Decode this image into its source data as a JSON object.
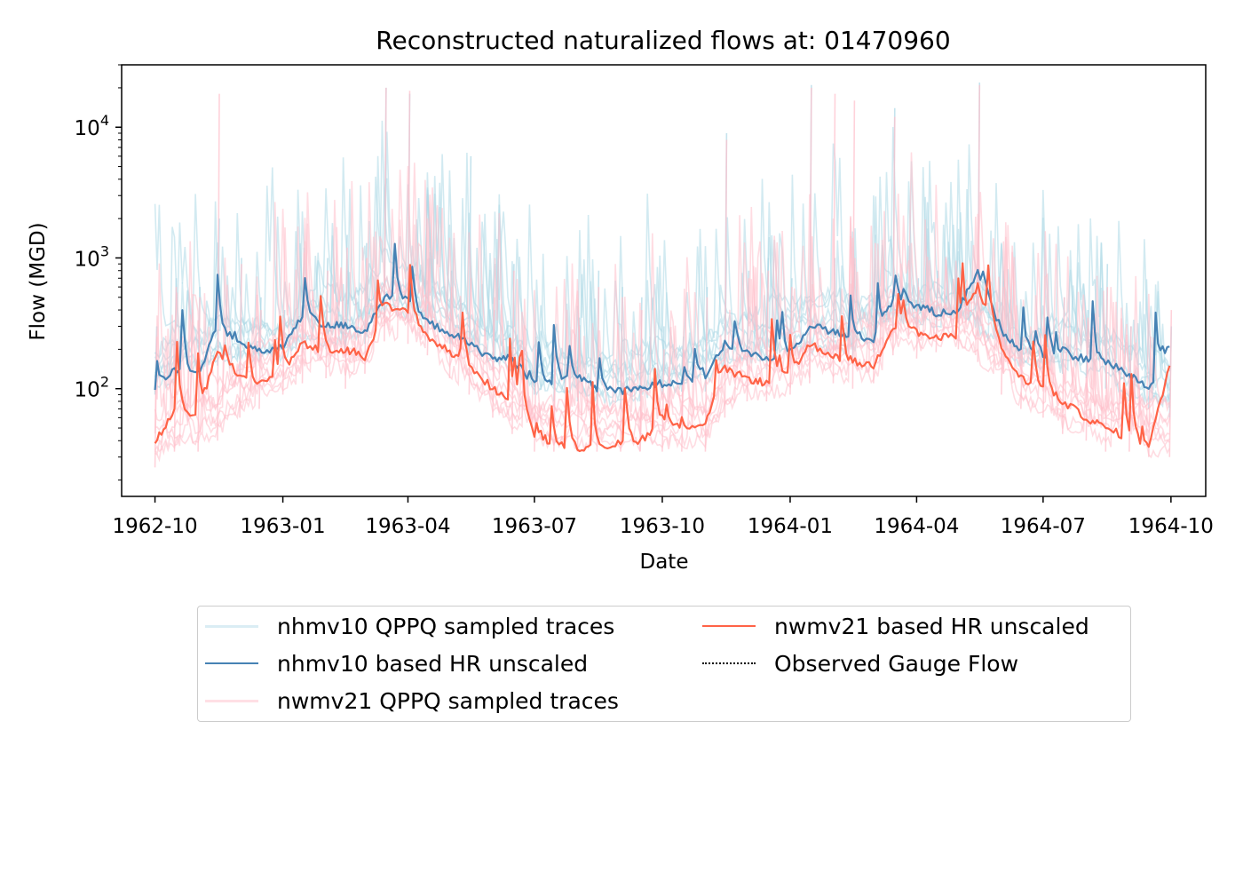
{
  "chart_data": {
    "type": "line",
    "title": "Reconstructed naturalized flows at: 01470960",
    "xlabel": "Date",
    "ylabel": "Flow (MGD)",
    "yscale": "log",
    "ylim": [
      15,
      30000
    ],
    "xlim": [
      "1962-09-07",
      "1964-10-26"
    ],
    "x_ticks": [
      "1962-10",
      "1963-01",
      "1963-04",
      "1963-07",
      "1963-10",
      "1964-01",
      "1964-04",
      "1964-07",
      "1964-10"
    ],
    "y_ticks": [
      {
        "value": 100,
        "base": "10",
        "exp": "2"
      },
      {
        "value": 1000,
        "base": "10",
        "exp": "3"
      },
      {
        "value": 10000,
        "base": "10",
        "exp": "4"
      }
    ],
    "grid": false,
    "legend_position": "below plot, two columns",
    "series": [
      {
        "name": "nhmv10 QPPQ sampled traces",
        "color": "#add8e6",
        "style": "solid, thin, semi-transparent, multiple traces",
        "envelope": {
          "x": [
            "1962-10-01",
            "1962-10-15",
            "1962-11-01",
            "1962-11-15",
            "1962-12-01",
            "1962-12-15",
            "1963-01-01",
            "1963-01-15",
            "1963-02-01",
            "1963-02-15",
            "1963-03-01",
            "1963-03-15",
            "1963-04-01",
            "1963-04-15",
            "1963-05-01",
            "1963-05-15",
            "1963-06-01",
            "1963-06-15",
            "1963-07-01",
            "1963-07-15",
            "1963-08-01",
            "1963-08-15",
            "1963-09-01",
            "1963-09-15",
            "1963-10-01",
            "1963-10-15",
            "1963-11-01",
            "1963-11-15",
            "1963-12-01",
            "1963-12-15",
            "1964-01-01",
            "1964-01-15",
            "1964-02-01",
            "1964-02-15",
            "1964-03-01",
            "1964-03-15",
            "1964-04-01",
            "1964-04-15",
            "1964-05-01",
            "1964-05-15",
            "1964-06-01",
            "1964-06-15",
            "1964-07-01",
            "1964-07-15",
            "1964-08-01",
            "1964-08-15",
            "1964-09-01",
            "1964-09-15",
            "1964-09-30"
          ],
          "low": [
            90,
            110,
            120,
            150,
            130,
            160,
            170,
            190,
            200,
            180,
            220,
            350,
            320,
            260,
            220,
            180,
            140,
            120,
            90,
            80,
            80,
            75,
            70,
            80,
            90,
            95,
            95,
            140,
            150,
            140,
            160,
            180,
            190,
            170,
            190,
            290,
            280,
            300,
            320,
            250,
            160,
            150,
            140,
            130,
            120,
            100,
            80,
            70,
            60
          ],
          "high": [
            300,
            700,
            600,
            2000,
            1000,
            500,
            400,
            1200,
            1000,
            1500,
            1300,
            20000,
            18000,
            1000,
            800,
            6000,
            400,
            900,
            250,
            300,
            350,
            800,
            600,
            500,
            300,
            250,
            600,
            9000,
            800,
            1000,
            700,
            21000,
            1000,
            900,
            1500,
            14000,
            700,
            800,
            600,
            22000,
            800,
            300,
            350,
            500,
            400,
            900,
            300,
            250,
            300
          ]
        }
      },
      {
        "name": "nhmv10 based HR unscaled",
        "color": "#4682b4",
        "style": "solid",
        "x": [
          "1962-10-01",
          "1962-10-15",
          "1962-11-01",
          "1962-11-15",
          "1962-12-01",
          "1962-12-15",
          "1963-01-01",
          "1963-01-15",
          "1963-02-01",
          "1963-02-15",
          "1963-03-01",
          "1963-03-15",
          "1963-04-01",
          "1963-04-15",
          "1963-05-01",
          "1963-05-15",
          "1963-06-01",
          "1963-06-15",
          "1963-07-01",
          "1963-07-15",
          "1963-08-01",
          "1963-08-15",
          "1963-09-01",
          "1963-09-15",
          "1963-10-01",
          "1963-10-15",
          "1963-11-01",
          "1963-11-15",
          "1963-12-01",
          "1963-12-15",
          "1964-01-01",
          "1964-01-15",
          "1964-02-01",
          "1964-02-15",
          "1964-03-01",
          "1964-03-15",
          "1964-04-01",
          "1964-04-15",
          "1964-05-01",
          "1964-05-15",
          "1964-06-01",
          "1964-06-15",
          "1964-07-01",
          "1964-07-15",
          "1964-08-01",
          "1964-08-15",
          "1964-09-01",
          "1964-09-15",
          "1964-09-30"
        ],
        "y": [
          95,
          140,
          130,
          300,
          220,
          190,
          210,
          350,
          300,
          310,
          270,
          500,
          450,
          320,
          270,
          220,
          170,
          170,
          110,
          110,
          120,
          100,
          95,
          100,
          110,
          115,
          120,
          220,
          190,
          170,
          180,
          310,
          270,
          250,
          240,
          480,
          430,
          380,
          400,
          800,
          280,
          200,
          180,
          180,
          170,
          160,
          130,
          100,
          210
        ]
      },
      {
        "name": "nwmv21 QPPQ sampled traces",
        "color": "#ffc0cb",
        "style": "solid, thin, semi-transparent, multiple traces",
        "envelope": {
          "x": [
            "1962-10-01",
            "1962-10-15",
            "1962-11-01",
            "1962-11-15",
            "1962-12-01",
            "1962-12-15",
            "1963-01-01",
            "1963-01-15",
            "1963-02-01",
            "1963-02-15",
            "1963-03-01",
            "1963-03-15",
            "1963-04-01",
            "1963-04-15",
            "1963-05-01",
            "1963-05-15",
            "1963-06-01",
            "1963-06-15",
            "1963-07-01",
            "1963-07-15",
            "1963-08-01",
            "1963-08-15",
            "1963-09-01",
            "1963-09-15",
            "1963-10-01",
            "1963-10-15",
            "1963-11-01",
            "1963-11-15",
            "1963-12-01",
            "1963-12-15",
            "1964-01-01",
            "1964-01-15",
            "1964-02-01",
            "1964-02-15",
            "1964-03-01",
            "1964-03-15",
            "1964-04-01",
            "1964-04-15",
            "1964-05-01",
            "1964-05-15",
            "1964-06-01",
            "1964-06-15",
            "1964-07-01",
            "1964-07-15",
            "1964-08-01",
            "1964-08-15",
            "1964-09-01",
            "1964-09-15",
            "1964-09-30"
          ],
          "low": [
            25,
            33,
            33,
            40,
            60,
            70,
            90,
            110,
            120,
            100,
            130,
            230,
            220,
            180,
            120,
            90,
            60,
            45,
            33,
            33,
            33,
            33,
            33,
            33,
            33,
            33,
            33,
            60,
            80,
            80,
            90,
            110,
            110,
            100,
            110,
            180,
            170,
            190,
            200,
            160,
            90,
            70,
            60,
            45,
            40,
            33,
            33,
            30,
            30
          ],
          "high": [
            250,
            600,
            500,
            18000,
            900,
            400,
            350,
            1100,
            800,
            1200,
            1000,
            20000,
            19000,
            800,
            600,
            700,
            500,
            800,
            200,
            250,
            300,
            600,
            500,
            400,
            200,
            200,
            500,
            8000,
            700,
            800,
            600,
            20000,
            18000,
            16000,
            1300,
            12000,
            600,
            700,
            500,
            21000,
            600,
            250,
            300,
            500,
            350,
            600,
            300,
            250,
            400
          ]
        }
      },
      {
        "name": "nwmv21 based HR unscaled",
        "color": "#ff6347",
        "style": "solid",
        "x": [
          "1962-10-01",
          "1962-10-15",
          "1962-11-01",
          "1962-11-15",
          "1962-12-01",
          "1962-12-15",
          "1963-01-01",
          "1963-01-15",
          "1963-02-01",
          "1963-02-15",
          "1963-03-01",
          "1963-03-15",
          "1963-04-01",
          "1963-04-15",
          "1963-05-01",
          "1963-05-15",
          "1963-06-01",
          "1963-06-15",
          "1963-07-01",
          "1963-07-15",
          "1963-08-01",
          "1963-08-15",
          "1963-09-01",
          "1963-09-15",
          "1963-10-01",
          "1963-10-15",
          "1963-11-01",
          "1963-11-15",
          "1963-12-01",
          "1963-12-15",
          "1964-01-01",
          "1964-01-15",
          "1964-02-01",
          "1964-02-15",
          "1964-03-01",
          "1964-03-15",
          "1964-04-01",
          "1964-04-15",
          "1964-05-01",
          "1964-05-15",
          "1964-06-01",
          "1964-06-15",
          "1964-07-01",
          "1964-07-15",
          "1964-08-01",
          "1964-08-15",
          "1964-09-01",
          "1964-09-15",
          "1964-09-30"
        ],
        "y": [
          38,
          70,
          60,
          200,
          120,
          110,
          130,
          220,
          190,
          200,
          170,
          420,
          380,
          250,
          190,
          150,
          100,
          80,
          45,
          38,
          35,
          35,
          38,
          40,
          55,
          50,
          55,
          140,
          120,
          110,
          120,
          220,
          180,
          160,
          150,
          300,
          270,
          240,
          260,
          600,
          200,
          120,
          100,
          80,
          60,
          50,
          42,
          35,
          150
        ]
      },
      {
        "name": "Observed Gauge Flow",
        "color": "#000000",
        "style": "dotted",
        "x": [],
        "y": []
      }
    ]
  }
}
